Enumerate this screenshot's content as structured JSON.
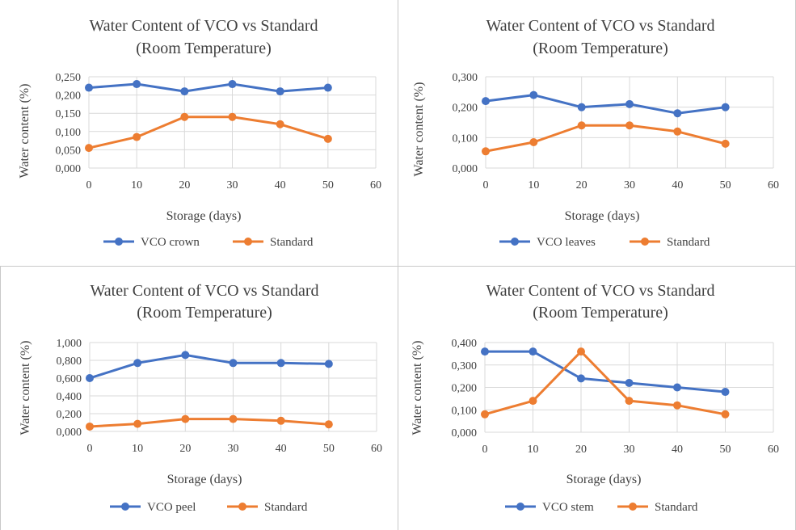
{
  "chart_data": [
    {
      "type": "line",
      "title": "Water Content of VCO vs Standard",
      "subtitle": "(Room Temperature)",
      "xlabel": "Storage (days)",
      "ylabel": "Water content (%)",
      "x": [
        0,
        10,
        20,
        30,
        40,
        50
      ],
      "xlim": [
        0,
        60
      ],
      "x_ticks": [
        "0",
        "10",
        "20",
        "30",
        "40",
        "50",
        "60"
      ],
      "ylim": [
        0,
        0.25
      ],
      "y_ticks": [
        "0,000",
        "0,050",
        "0,100",
        "0,150",
        "0,200",
        "0,250"
      ],
      "grid": true,
      "legend_position": "bottom",
      "series": [
        {
          "name": "VCO crown",
          "color": "#4472c4",
          "values": [
            0.22,
            0.23,
            0.21,
            0.23,
            0.21,
            0.22
          ]
        },
        {
          "name": "Standard",
          "color": "#ed7d31",
          "values": [
            0.055,
            0.085,
            0.14,
            0.14,
            0.12,
            0.08
          ]
        }
      ]
    },
    {
      "type": "line",
      "title": "Water Content of VCO vs Standard",
      "subtitle": "(Room Temperature)",
      "xlabel": "Storage (days)",
      "ylabel": "Water content (%)",
      "x": [
        0,
        10,
        20,
        30,
        40,
        50
      ],
      "xlim": [
        0,
        60
      ],
      "x_ticks": [
        "0",
        "10",
        "20",
        "30",
        "40",
        "50",
        "60"
      ],
      "ylim": [
        0,
        0.3
      ],
      "y_ticks": [
        "0,000",
        "0,100",
        "0,200",
        "0,300"
      ],
      "grid": true,
      "legend_position": "bottom",
      "series": [
        {
          "name": "VCO leaves",
          "color": "#4472c4",
          "values": [
            0.22,
            0.24,
            0.2,
            0.21,
            0.18,
            0.2
          ]
        },
        {
          "name": "Standard",
          "color": "#ed7d31",
          "values": [
            0.055,
            0.085,
            0.14,
            0.14,
            0.12,
            0.08
          ]
        }
      ]
    },
    {
      "type": "line",
      "title": "Water Content of VCO vs Standard",
      "subtitle": "(Room Temperature)",
      "xlabel": "Storage (days)",
      "ylabel": "Water content (%)",
      "x": [
        0,
        10,
        20,
        30,
        40,
        50
      ],
      "xlim": [
        0,
        60
      ],
      "x_ticks": [
        "0",
        "10",
        "20",
        "30",
        "40",
        "50",
        "60"
      ],
      "ylim": [
        0,
        1.0
      ],
      "y_ticks": [
        "0,000",
        "0,200",
        "0,400",
        "0,600",
        "0,800",
        "1,000"
      ],
      "grid": true,
      "legend_position": "bottom",
      "series": [
        {
          "name": "VCO peel",
          "color": "#4472c4",
          "values": [
            0.6,
            0.77,
            0.86,
            0.77,
            0.77,
            0.76
          ]
        },
        {
          "name": "Standard",
          "color": "#ed7d31",
          "values": [
            0.055,
            0.085,
            0.14,
            0.14,
            0.12,
            0.08
          ]
        }
      ]
    },
    {
      "type": "line",
      "title": "Water Content of VCO vs Standard",
      "subtitle": "(Room Temperature)",
      "xlabel": "Storage (days)",
      "ylabel": "Water content (%)",
      "x": [
        0,
        10,
        20,
        30,
        40,
        50
      ],
      "xlim": [
        0,
        60
      ],
      "x_ticks": [
        "0",
        "10",
        "20",
        "30",
        "40",
        "50",
        "60"
      ],
      "ylim": [
        0,
        0.4
      ],
      "y_ticks": [
        "0,000",
        "0,100",
        "0,200",
        "0,300",
        "0,400"
      ],
      "grid": true,
      "legend_position": "bottom",
      "series": [
        {
          "name": "VCO stem",
          "color": "#4472c4",
          "values": [
            0.36,
            0.36,
            0.24,
            0.22,
            0.2,
            0.18
          ]
        },
        {
          "name": "Standard",
          "color": "#ed7d31",
          "values": [
            0.08,
            0.14,
            0.36,
            0.14,
            0.12,
            0.08
          ]
        }
      ]
    }
  ]
}
